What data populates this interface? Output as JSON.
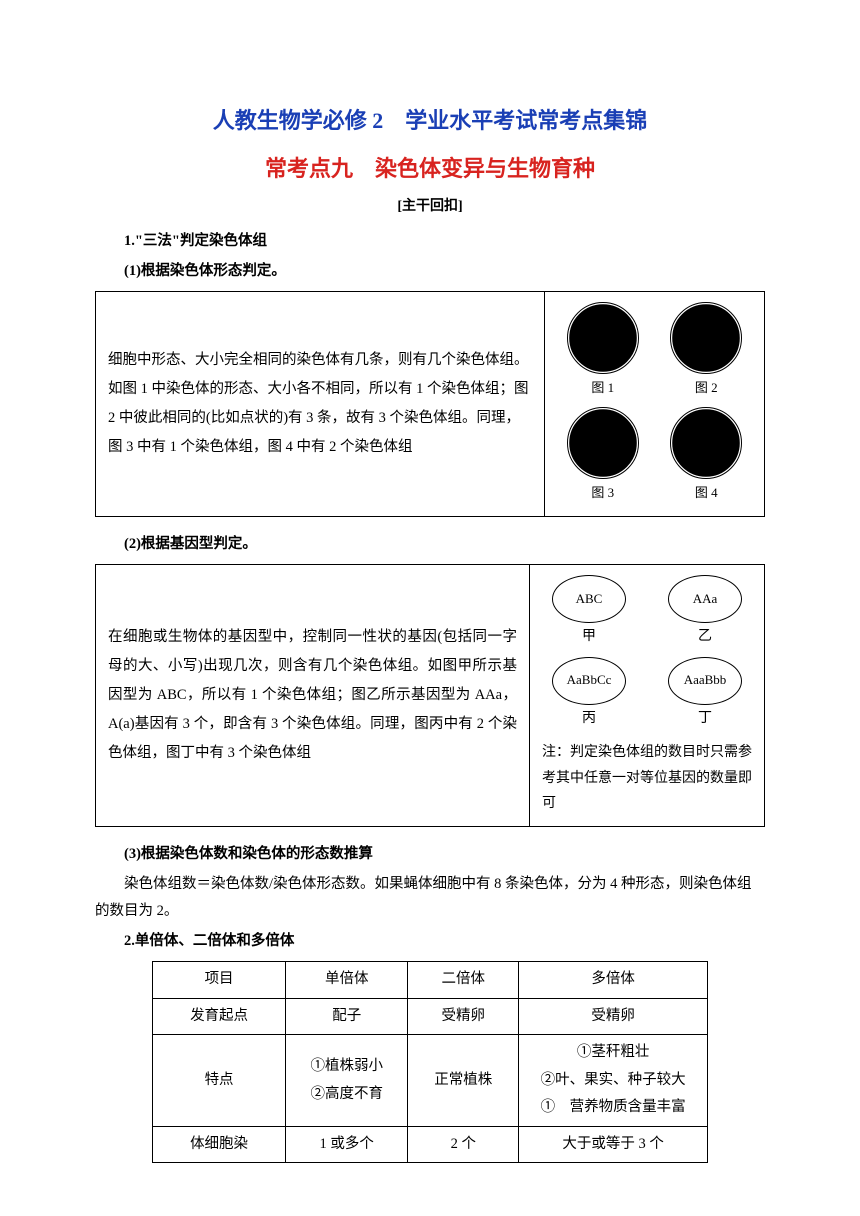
{
  "colors": {
    "title_blue": "#1a3fb5",
    "title_red": "#d8231f",
    "text": "#000000",
    "border": "#000000",
    "bg": "#ffffff"
  },
  "title1": "人教生物学必修 2　学业水平考试常考点集锦",
  "title2": "常考点九　染色体变异与生物育种",
  "subtitle": "[主干回扣]",
  "h1": "1.\"三法\"判定染色体组",
  "h1a": "(1)根据染色体形态判定。",
  "box1_text": "细胞中形态、大小完全相同的染色体有几条，则有几个染色体组。如图 1 中染色体的形态、大小各不相同，所以有 1 个染色体组；图 2 中彼此相同的(比如点状的)有 3 条，故有 3 个染色体组。同理，图 3 中有 1 个染色体组，图 4 中有 2 个染色体组",
  "fig_labels": [
    "图 1",
    "图 2",
    "图 3",
    "图 4"
  ],
  "h1b": "(2)根据基因型判定。",
  "box2_text": "在细胞或生物体的基因型中，控制同一性状的基因(包括同一字母的大、小写)出现几次，则含有几个染色体组。如图甲所示基因型为 ABC，所以有 1 个染色体组；图乙所示基因型为 AAa，A(a)基因有 3 个，即含有 3 个染色体组。同理，图丙中有 2 个染色体组，图丁中有 3 个染色体组",
  "genes": [
    "ABC",
    "AAa",
    "AaBbCc",
    "AaaBbb"
  ],
  "gene_labels": [
    "甲",
    "乙",
    "丙",
    "丁"
  ],
  "box2_note": "注：判定染色体组的数目时只需参考其中任意一对等位基因的数量即可",
  "h1c": "(3)根据染色体数和染色体的形态数推算",
  "para3": "染色体组数＝染色体数/染色体形态数。如果蝇体细胞中有 8 条染色体，分为 4 种形态，则染色体组的数目为 2。",
  "h2": "2.单倍体、二倍体和多倍体",
  "table": {
    "headers": [
      "项目",
      "单倍体",
      "二倍体",
      "多倍体"
    ],
    "rows": [
      [
        "发育起点",
        "配子",
        "受精卵",
        "受精卵"
      ],
      [
        "特点",
        "①植株弱小\n②高度不育",
        "正常植株",
        "①茎秆粗壮\n②叶、果实、种子较大\n①　营养物质含量丰富"
      ],
      [
        "体细胞染",
        "1 或多个",
        "2 个",
        "大于或等于 3 个"
      ]
    ]
  }
}
